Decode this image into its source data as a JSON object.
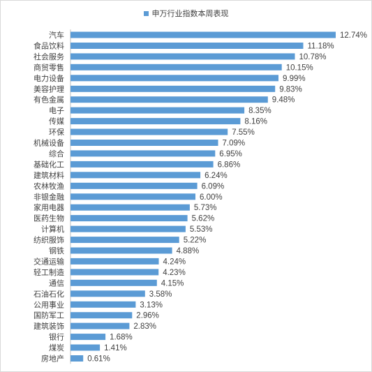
{
  "chart_data": {
    "type": "bar",
    "orientation": "horizontal",
    "title": "",
    "legend": {
      "label": "申万行业指数本周表现",
      "position": "top",
      "color": "#5b9bd5"
    },
    "categories": [
      "汽车",
      "食品饮料",
      "社会服务",
      "商贸零售",
      "电力设备",
      "美容护理",
      "有色金属",
      "电子",
      "传媒",
      "环保",
      "机械设备",
      "综合",
      "基础化工",
      "建筑材料",
      "农林牧渔",
      "非银金融",
      "家用电器",
      "医药生物",
      "计算机",
      "纺织服饰",
      "钢铁",
      "交通运输",
      "轻工制造",
      "通信",
      "石油石化",
      "公用事业",
      "国防军工",
      "建筑装饰",
      "银行",
      "煤炭",
      "房地产"
    ],
    "values": [
      12.74,
      11.18,
      10.78,
      10.15,
      9.99,
      9.83,
      9.48,
      8.35,
      8.16,
      7.55,
      7.09,
      6.95,
      6.86,
      6.24,
      6.09,
      6.0,
      5.73,
      5.62,
      5.53,
      5.22,
      4.88,
      4.24,
      4.23,
      4.15,
      3.58,
      3.13,
      2.96,
      2.83,
      1.68,
      1.41,
      0.61
    ],
    "value_labels": [
      "12.74%",
      "11.18%",
      "10.78%",
      "10.15%",
      "9.99%",
      "9.83%",
      "9.48%",
      "8.35%",
      "8.16%",
      "7.55%",
      "7.09%",
      "6.95%",
      "6.86%",
      "6.24%",
      "6.09%",
      "6.00%",
      "5.73%",
      "5.62%",
      "5.53%",
      "5.22%",
      "4.88%",
      "4.24%",
      "4.23%",
      "4.15%",
      "3.58%",
      "3.13%",
      "2.96%",
      "2.83%",
      "1.68%",
      "1.41%",
      "0.61%"
    ],
    "xlim": [
      0,
      13
    ],
    "grid": false,
    "bar_color": "#5b9bd5"
  }
}
